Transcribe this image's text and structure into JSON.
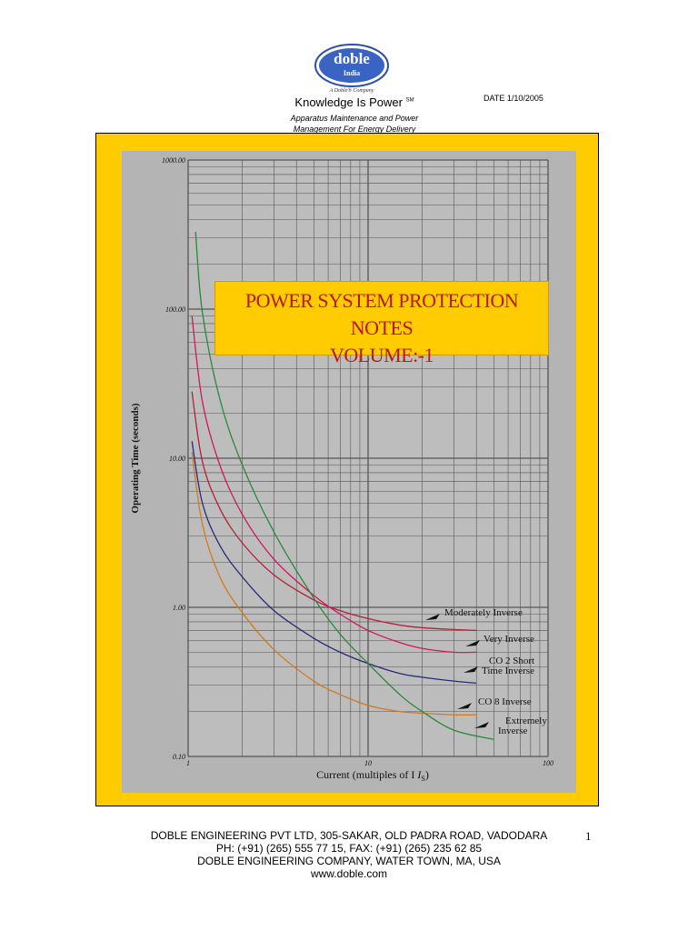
{
  "header": {
    "logo_text": "doble",
    "logo_sub": "India",
    "logo_company": "A Doble® Company",
    "tagline": "Knowledge Is Power",
    "tagline_mark": "SM",
    "subtitle_line1": "Apparatus Maintenance and Power",
    "subtitle_line2": "Management For Energy Delivery",
    "date": "DATE  1/10/2005"
  },
  "cover": {
    "title_line1": "POWER SYSTEM PROTECTION NOTES",
    "title_line2": "VOLUME:-1",
    "frame_color": "#fecc00",
    "title_color": "#b71a10"
  },
  "chart_data": {
    "type": "line",
    "xlabel": "Current (multiples of I",
    "xlabel_sub": "S",
    "xlabel_end": ")",
    "ylabel": "Operating Time (seconds)",
    "x_scale": "log",
    "y_scale": "log",
    "xlim": [
      1,
      100
    ],
    "ylim": [
      0.1,
      1000
    ],
    "x_ticks": [
      "1",
      "10",
      "100"
    ],
    "y_ticks": [
      "0.10",
      "1.00",
      "10.00",
      "100.00",
      "1000.00"
    ],
    "grid": true,
    "series": [
      {
        "name": "Moderately Inverse",
        "color": "#b0223a",
        "x": [
          1.05,
          1.2,
          1.5,
          2,
          3,
          5,
          7,
          10,
          15,
          20,
          30,
          40
        ],
        "y": [
          28,
          9.5,
          4.6,
          2.7,
          1.65,
          1.12,
          0.95,
          0.84,
          0.76,
          0.73,
          0.71,
          0.7
        ]
      },
      {
        "name": "Very Inverse",
        "color": "#d0185a",
        "x": [
          1.05,
          1.2,
          1.5,
          2,
          3,
          5,
          7,
          10,
          15,
          20,
          30,
          40
        ],
        "y": [
          90,
          24,
          9.0,
          4.2,
          2.1,
          1.2,
          0.9,
          0.7,
          0.58,
          0.53,
          0.5,
          0.5
        ]
      },
      {
        "name": "CO 2 Short Time Inverse",
        "color": "#2a2a7a",
        "x": [
          1.05,
          1.2,
          1.5,
          2,
          3,
          5,
          7,
          10,
          15,
          20,
          30,
          40
        ],
        "y": [
          13,
          5.0,
          2.6,
          1.6,
          0.95,
          0.62,
          0.5,
          0.42,
          0.36,
          0.34,
          0.32,
          0.31
        ]
      },
      {
        "name": "CO 8 Inverse",
        "color": "#d07a20",
        "x": [
          1.05,
          1.2,
          1.5,
          2,
          3,
          5,
          7,
          10,
          15,
          20,
          30,
          40
        ],
        "y": [
          11,
          3.6,
          1.6,
          0.92,
          0.52,
          0.32,
          0.26,
          0.22,
          0.2,
          0.195,
          0.19,
          0.19
        ]
      },
      {
        "name": "Extremely Inverse",
        "color": "#2a8a3a",
        "x": [
          1.1,
          1.2,
          1.5,
          2,
          3,
          5,
          7,
          10,
          15,
          20,
          30,
          50
        ],
        "y": [
          330,
          95,
          25,
          9.0,
          3.2,
          1.15,
          0.66,
          0.42,
          0.26,
          0.2,
          0.15,
          0.13
        ]
      }
    ]
  },
  "footer": {
    "line1": "DOBLE ENGINEERING PVT LTD, 305-SAKAR, OLD PADRA ROAD, VADODARA",
    "line2": "PH: (+91) (265) 555 77 15, FAX: (+91) (265) 235 62 85",
    "line3": "DOBLE ENGINEERING COMPANY, WATER TOWN, MA, USA",
    "line4": "www.doble.com",
    "page_number": "1"
  }
}
